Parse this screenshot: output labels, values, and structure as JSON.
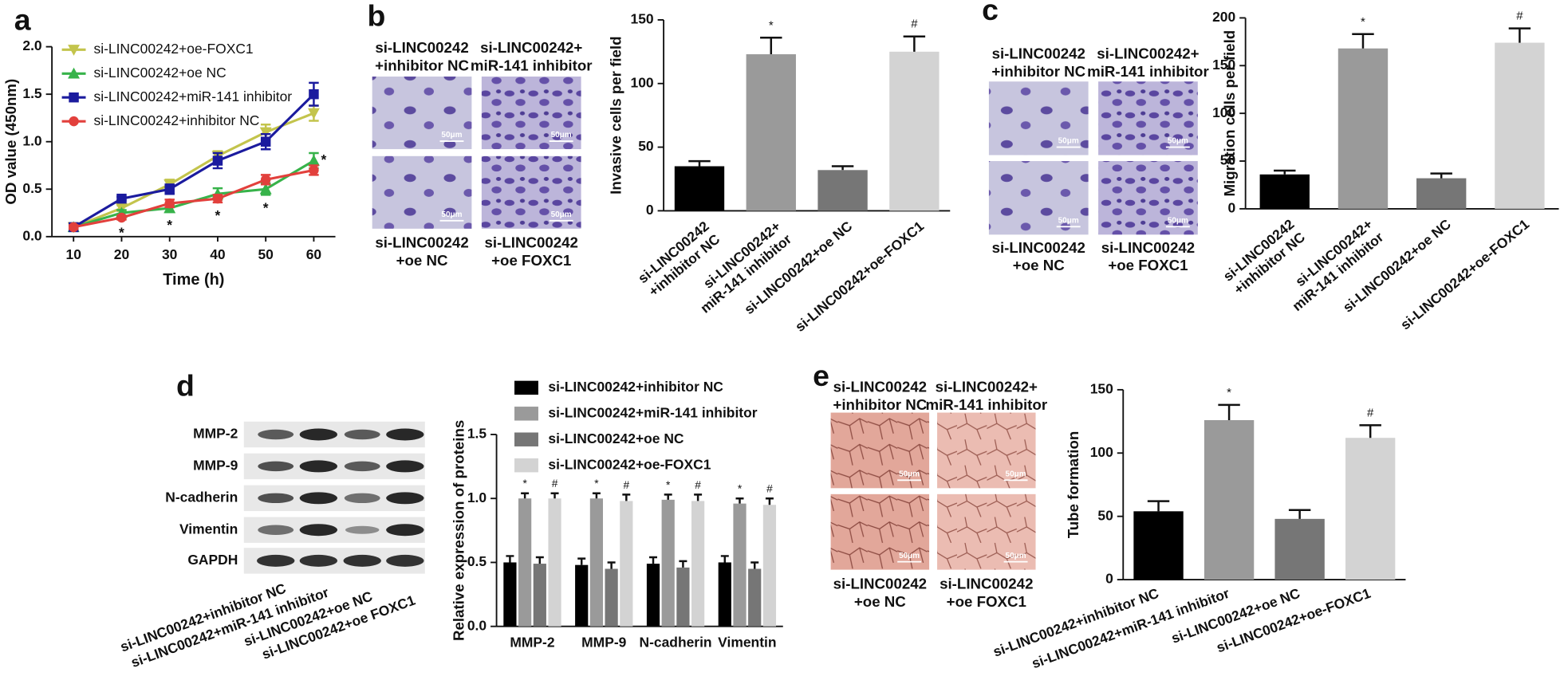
{
  "panel_labels": [
    "a",
    "b",
    "c",
    "d",
    "e"
  ],
  "micrographs_b": {
    "captions": [
      [
        "si-LINC00242",
        "+inhibitor NC"
      ],
      [
        "si-LINC00242+",
        "miR-141 inhibitor"
      ],
      [
        "si-LINC00242",
        "+oe NC"
      ],
      [
        "si-LINC00242",
        "+oe FOXC1"
      ]
    ],
    "scale_bar": "50μm"
  },
  "micrographs_c": {
    "captions": [
      [
        "si-LINC00242",
        "+inhibitor NC"
      ],
      [
        "si-LINC00242+",
        "miR-141 inhibitor"
      ],
      [
        "si-LINC00242",
        "+oe NC"
      ],
      [
        "si-LINC00242",
        "+oe FOXC1"
      ]
    ],
    "scale_bar": "50μm"
  },
  "micrographs_e": {
    "captions": [
      [
        "si-LINC00242",
        "+inhibitor NC"
      ],
      [
        "si-LINC00242+",
        "miR-141 inhibitor"
      ],
      [
        "si-LINC00242",
        "+oe NC"
      ],
      [
        "si-LINC00242",
        "+oe FOXC1"
      ]
    ],
    "scale_bar": "50μm"
  },
  "western_blot": {
    "proteins": [
      "MMP-2",
      "MMP-9",
      "N-cadherin",
      "Vimentin",
      "GAPDH"
    ],
    "lanes": [
      "si-LINC00242+inhibitor NC",
      "si-LINC00242+miR-141 inhibitor",
      "si-LINC00242+oe NC",
      "si-LINC00242+oe FOXC1"
    ]
  },
  "chart_data": [
    {
      "type": "line",
      "xlabel": "Time (h)",
      "ylabel": "OD value (450nm)",
      "x": [
        10,
        20,
        30,
        40,
        50,
        60
      ],
      "xlim": [
        5.5,
        64.5
      ],
      "xticks": [
        10,
        20,
        30,
        40,
        50,
        60
      ],
      "ylim": [
        0,
        2.0
      ],
      "yticks": [
        {
          "value": 0,
          "label": "0.0"
        },
        0.5,
        {
          "value": 1.0,
          "label": "1.0"
        },
        1.5,
        {
          "value": 2.0,
          "label": "2.0"
        }
      ],
      "legend": "upper-left",
      "series": [
        {
          "name": "si-LINC00242+oe-FOXC1",
          "color": "#c3c44c",
          "marker": "v",
          "values": [
            0.1,
            0.3,
            0.55,
            0.85,
            1.1,
            1.3
          ],
          "errors": [
            0.02,
            0.03,
            0.05,
            0.05,
            0.08,
            0.08
          ]
        },
        {
          "name": "si-LINC00242+oe NC",
          "color": "#37b34a",
          "marker": "^",
          "values": [
            0.1,
            0.25,
            0.3,
            0.45,
            0.5,
            0.8
          ],
          "errors": [
            0.02,
            0.03,
            0.04,
            0.06,
            0.06,
            0.08
          ]
        },
        {
          "name": "si-LINC00242+miR-141 inhibitor",
          "color": "#1b1b9e",
          "marker": "s",
          "values": [
            0.1,
            0.4,
            0.5,
            0.8,
            1.0,
            1.5
          ],
          "errors": [
            0.02,
            0.02,
            0.05,
            0.08,
            0.08,
            0.12
          ]
        },
        {
          "name": "si-LINC00242+inhibitor NC",
          "color": "#e2403c",
          "marker": "o",
          "values": [
            0.1,
            0.2,
            0.35,
            0.4,
            0.6,
            0.7
          ],
          "errors": [
            0.02,
            0.02,
            0.04,
            0.04,
            0.05,
            0.05
          ]
        }
      ],
      "annotations": [
        "*",
        "*",
        "*",
        "*",
        "*"
      ]
    },
    {
      "type": "bar",
      "ylabel": "Invasive cells per field",
      "categories": [
        [
          "si-LINC00242",
          "+inhibitor NC"
        ],
        [
          "si-LINC00242+",
          "miR-141 inhibitor"
        ],
        [
          "si-LINC00242+oe NC"
        ],
        [
          "si-LINC00242+oe-FOXC1"
        ]
      ],
      "values": [
        35,
        123,
        32,
        125
      ],
      "errors": [
        4,
        13,
        3,
        12
      ],
      "colors": [
        "#000000",
        "#9a9a9a",
        "#767676",
        "#d3d3d3"
      ],
      "ylim": [
        0,
        150
      ],
      "yticks": [
        0,
        50,
        100,
        150
      ],
      "annotations": [
        "*",
        "#"
      ]
    },
    {
      "type": "bar",
      "ylabel": "Migration cells per field",
      "categories": [
        [
          "si-LINC00242",
          "+inhibitor NC"
        ],
        [
          "si-LINC00242+",
          "miR-141 inhibitor"
        ],
        [
          "si-LINC00242+oe NC"
        ],
        [
          "si-LINC00242+oe-FOXC1"
        ]
      ],
      "values": [
        36,
        168,
        32,
        174
      ],
      "errors": [
        4,
        15,
        5,
        15
      ],
      "colors": [
        "#000000",
        "#9a9a9a",
        "#767676",
        "#d3d3d3"
      ],
      "ylim": [
        0,
        200
      ],
      "yticks": [
        0,
        50,
        100,
        150,
        200
      ],
      "annotations": [
        "*",
        "#"
      ]
    },
    {
      "type": "bar",
      "ylabel": "Relative expression of proteins",
      "categories": [
        "MMP-2",
        "MMP-9",
        "N-cadherin",
        "Vimentin"
      ],
      "ylim": [
        0,
        1.5
      ],
      "yticks": [
        {
          "value": 0,
          "label": "0.0"
        },
        0.5,
        {
          "value": 1.0,
          "label": "1.0"
        },
        1.5
      ],
      "legend": "upper-left",
      "series": [
        {
          "name": "si-LINC00242+inhibitor NC",
          "color": "#000000",
          "values": [
            0.5,
            0.48,
            0.49,
            0.5
          ],
          "errors": [
            0.05,
            0.05,
            0.05,
            0.05
          ]
        },
        {
          "name": "si-LINC00242+miR-141 inhibitor",
          "color": "#9a9a9a",
          "values": [
            1.0,
            1.0,
            0.99,
            0.96
          ],
          "errors": [
            0.04,
            0.04,
            0.04,
            0.04
          ]
        },
        {
          "name": "si-LINC00242+oe NC",
          "color": "#767676",
          "values": [
            0.49,
            0.45,
            0.46,
            0.45
          ],
          "errors": [
            0.05,
            0.05,
            0.05,
            0.05
          ]
        },
        {
          "name": "si-LINC00242+oe-FOXC1",
          "color": "#d3d3d3",
          "values": [
            1.0,
            0.98,
            0.98,
            0.95
          ],
          "errors": [
            0.04,
            0.05,
            0.05,
            0.05
          ]
        }
      ],
      "annotations": [
        "*",
        "#"
      ]
    },
    {
      "type": "bar",
      "ylabel": "Tube formation",
      "categories": [
        "si-LINC00242+inhibitor NC",
        "si-LINC00242+miR-141 inhibitor",
        "si-LINC00242+oe NC",
        "si-LINC00242+oe-FOXC1"
      ],
      "values": [
        54,
        126,
        48,
        112
      ],
      "errors": [
        8,
        12,
        7,
        10
      ],
      "colors": [
        "#000000",
        "#9a9a9a",
        "#767676",
        "#d3d3d3"
      ],
      "ylim": [
        0,
        150
      ],
      "yticks": [
        0,
        50,
        100,
        150
      ],
      "annotations": [
        "*",
        "#"
      ]
    }
  ]
}
